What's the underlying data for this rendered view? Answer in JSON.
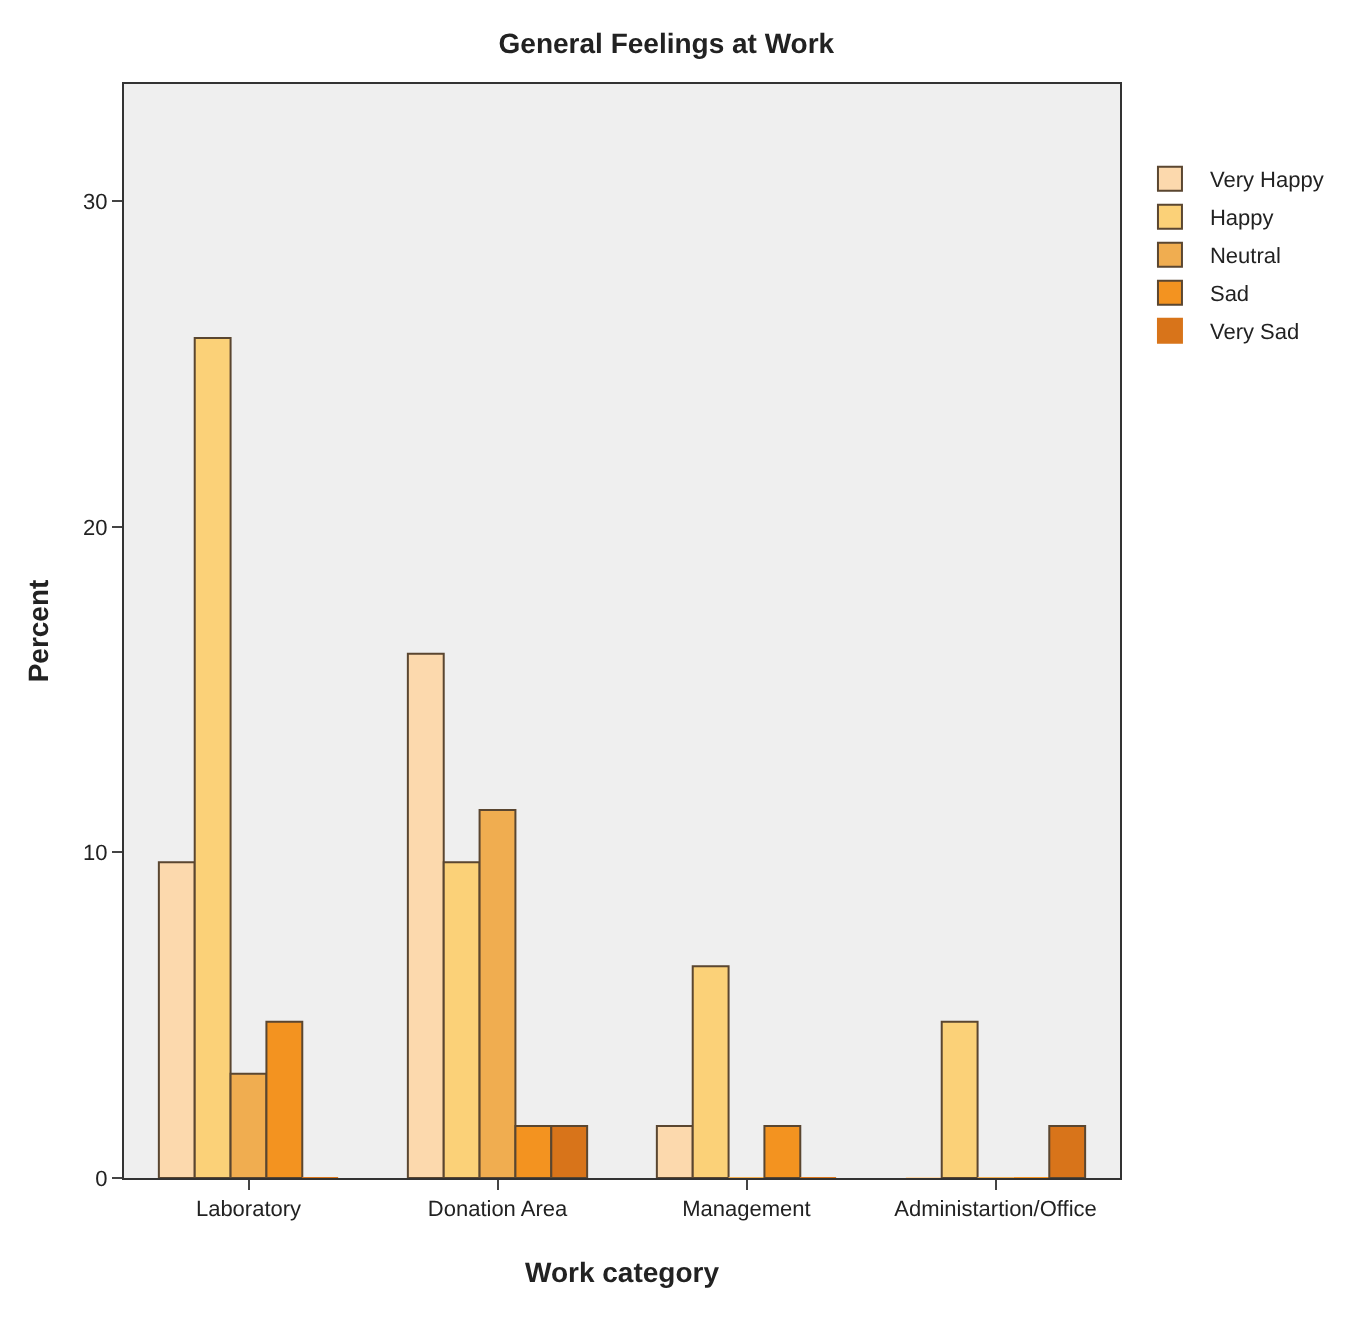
{
  "chart_data": {
    "type": "bar",
    "title": "General Feelings at Work",
    "xlabel": "Work category",
    "ylabel": "Percent",
    "categories": [
      "Laboratory",
      "Donation Area",
      "Management",
      "Administartion/Office"
    ],
    "series": [
      {
        "name": "Very Happy",
        "color": "#fcd9ad",
        "values": [
          9.7,
          16.1,
          1.6,
          0
        ]
      },
      {
        "name": "Happy",
        "color": "#fbd178",
        "values": [
          25.8,
          9.7,
          6.5,
          4.8
        ]
      },
      {
        "name": "Neutral",
        "color": "#f0ad50",
        "values": [
          3.2,
          11.3,
          0,
          0
        ]
      },
      {
        "name": "Sad",
        "color": "#f39320",
        "values": [
          4.8,
          1.6,
          1.6,
          0
        ]
      },
      {
        "name": "Very Sad",
        "color": "#d8741a",
        "values": [
          0,
          1.6,
          0,
          1.6
        ]
      }
    ],
    "ylim": [
      0,
      33.6
    ],
    "yticks": [
      0,
      10,
      20,
      30
    ],
    "grid": false,
    "legend": "top right"
  }
}
